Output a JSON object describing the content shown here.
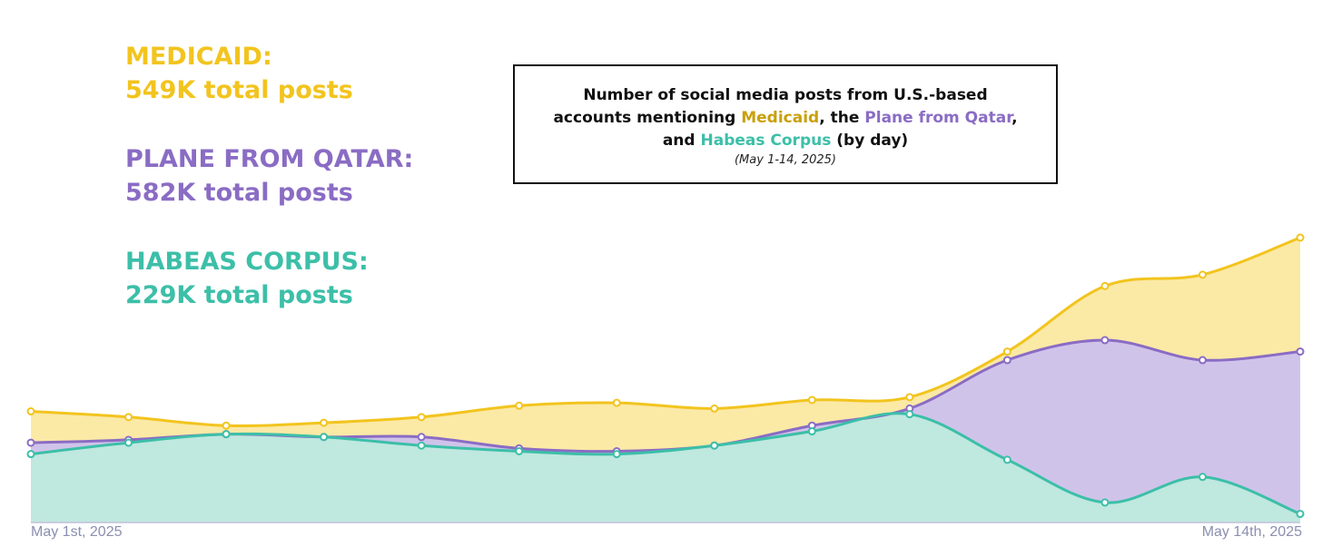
{
  "stats": [
    {
      "label": "MEDICAID:",
      "value": "549K total posts",
      "color": "#f2c41e"
    },
    {
      "label": "PLANE FROM QATAR:",
      "value": "582K total posts",
      "color": "#8a6cc4"
    },
    {
      "label": "HABEAS CORPUS:",
      "value": "229K total posts",
      "color": "#3cbfa8"
    }
  ],
  "title": {
    "line1": "Number of social media posts from U.S.-based",
    "line2_a": "accounts mentioning ",
    "line2_medicaid": "Medicaid",
    "line2_b": ", the ",
    "line2_plane": "Plane from Qatar",
    "line2_c": ",",
    "line3_a": "and ",
    "line3_habeas": "Habeas Corpus",
    "line3_b": " (by day)",
    "subtitle": "(May 1-14,  2025)"
  },
  "x_labels": {
    "start": "May 1st, 2025",
    "end": "May 14th, 2025"
  },
  "chart_data": {
    "type": "area",
    "x": [
      "May 1",
      "May 2",
      "May 3",
      "May 4",
      "May 5",
      "May 6",
      "May 7",
      "May 8",
      "May 9",
      "May 10",
      "May 11",
      "May 12",
      "May 13",
      "May 14"
    ],
    "x_tick_labels": [
      "May 1st, 2025",
      "May 14th, 2025"
    ],
    "ylim": [
      0,
      100
    ],
    "y_units": "relative (no y-axis printed)",
    "series": [
      {
        "name": "Medicaid",
        "color": "#f2c41e",
        "fill": "#fbe9a6",
        "values": [
          39,
          37,
          34,
          35,
          37,
          41,
          42,
          40,
          43,
          44,
          60,
          83,
          87,
          100
        ]
      },
      {
        "name": "Plane from Qatar",
        "color": "#8a6cc4",
        "fill": "#d0c3ea",
        "values": [
          28,
          29,
          31,
          30,
          30,
          26,
          25,
          27,
          34,
          40,
          57,
          64,
          57,
          60
        ]
      },
      {
        "name": "Habeas Corpus",
        "color": "#3cbfa8",
        "fill": "#bfe8df",
        "values": [
          24,
          28,
          31,
          30,
          27,
          25,
          24,
          27,
          32,
          38,
          22,
          7,
          16,
          3
        ]
      }
    ],
    "grid": false,
    "legend": "none"
  }
}
